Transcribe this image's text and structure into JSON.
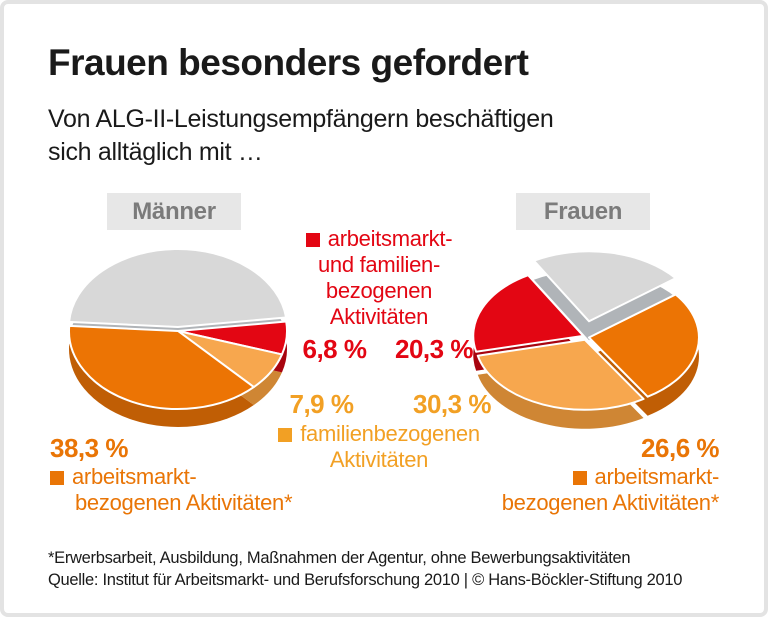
{
  "card": {
    "title": "Frauen besonders gefordert",
    "subtitle_line1": "Von ALG-II-Leistungsempfängern beschäftigen",
    "subtitle_line2": "sich alltäglich mit …",
    "footnote": "*Erwerbsarbeit, Ausbildung, Maßnahmen der Agentur, ohne Bewerbungsaktivitäten",
    "source": "Quelle: Institut für Arbeitsmarkt- und Berufsforschung 2010 | © Hans-Böckler-Stiftung 2010"
  },
  "groups": {
    "left_label": "Männer",
    "right_label": "Frauen"
  },
  "legend": {
    "red": {
      "color": "#e30613",
      "lines": [
        "arbeitsmarkt-",
        "und familien-",
        "bezogenen",
        "Aktivitäten"
      ]
    },
    "light_orange": {
      "color": "#f2a024",
      "lines": [
        "familienbezogenen",
        "Aktivitäten"
      ]
    },
    "dark_orange": {
      "color": "#e97506",
      "lines": [
        "arbeitsmarkt-",
        "bezogenen Aktivitäten*"
      ]
    }
  },
  "colors": {
    "red": "#e30613",
    "light_orange_text": "#f2a024",
    "dark_orange": "#e97506",
    "gray_slice": "#d8d8d8",
    "label_box_bg": "#e7e7e7",
    "label_box_text": "#7b7b7b",
    "text": "#1a1a1a",
    "border": "#e3e3e3"
  },
  "chart_data": [
    {
      "type": "pie",
      "group": "Männer",
      "unit": "%",
      "slices": [
        {
          "label": "arbeitsmarkt- und familienbezogenen Aktivitäten",
          "value": 6.8,
          "display": "6,8 %",
          "color": "#e30613",
          "shade": "#a8040f"
        },
        {
          "label": "familienbezogenen Aktivitäten",
          "value": 7.9,
          "display": "7,9 %",
          "color": "#f7a74e",
          "shade": "#cf8634"
        },
        {
          "label": "arbeitsmarktbezogenen Aktivitäten*",
          "value": 38.3,
          "display": "38,3 %",
          "color": "#ec7404",
          "shade": "#c05e05"
        },
        {
          "label": "",
          "value": 47.0,
          "display": "",
          "color": "#d8d8d8",
          "shade": "#b0b4b8"
        }
      ]
    },
    {
      "type": "pie",
      "group": "Frauen",
      "unit": "%",
      "slices": [
        {
          "label": "arbeitsmarkt- und familienbezogenen Aktivitäten",
          "value": 20.3,
          "display": "20,3 %",
          "color": "#e30613",
          "shade": "#a8040f"
        },
        {
          "label": "familienbezogenen Aktivitäten",
          "value": 30.3,
          "display": "30,3 %",
          "color": "#f7a74e",
          "shade": "#cf8634"
        },
        {
          "label": "arbeitsmarktbezogenen Aktivitäten*",
          "value": 26.6,
          "display": "26,6 %",
          "color": "#ec7404",
          "shade": "#c05e05"
        },
        {
          "label": "",
          "value": 22.8,
          "display": "",
          "color": "#d8d8d8",
          "shade": "#b0b4b8"
        }
      ]
    }
  ]
}
